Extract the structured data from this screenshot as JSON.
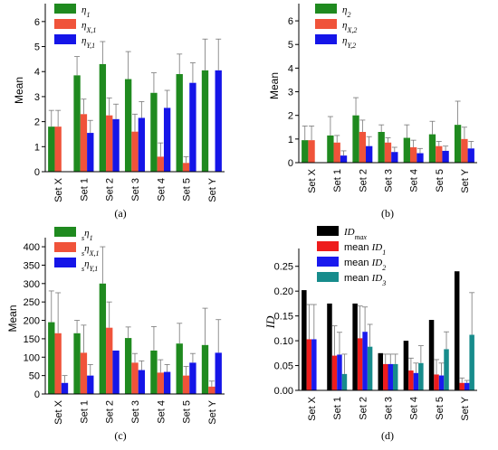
{
  "chart_data": [
    {
      "id": "a",
      "type": "bar",
      "panel_label": "(a)",
      "ylabel": "Mean",
      "ylim": [
        0,
        6.5
      ],
      "yticks": [
        "0",
        "1",
        "2",
        "3",
        "4",
        "5",
        "6"
      ],
      "categories": [
        "Set X",
        "Set 1",
        "Set 2",
        "Set 3",
        "Set 4",
        "Set 5",
        "Set Y"
      ],
      "legend": [
        {
          "base": "η",
          "sup": "",
          "subscript": "1"
        },
        {
          "base": "η",
          "sup": "",
          "subscript": "X,1"
        },
        {
          "base": "η",
          "sup": "",
          "subscript": "Y,1"
        }
      ],
      "series": [
        {
          "color": "#1f8a1f",
          "values": [
            1.8,
            3.85,
            4.3,
            3.7,
            3.15,
            3.9,
            4.05
          ],
          "errors": [
            0.65,
            0.75,
            0.9,
            1.1,
            0.8,
            0.8,
            1.25
          ]
        },
        {
          "color": "#f0533a",
          "values": [
            1.8,
            2.3,
            2.25,
            1.6,
            0.6,
            0.35,
            null
          ],
          "errors": [
            0.65,
            0.6,
            0.7,
            0.7,
            0.55,
            0.25,
            null
          ]
        },
        {
          "color": "#1515e8",
          "values": [
            null,
            1.55,
            2.1,
            2.15,
            2.55,
            3.55,
            4.05
          ],
          "errors": [
            null,
            0.5,
            0.6,
            0.65,
            0.7,
            0.8,
            1.25
          ]
        }
      ]
    },
    {
      "id": "b",
      "type": "bar",
      "panel_label": "(b)",
      "ylabel": "Mean",
      "ylim": [
        0,
        6.5
      ],
      "yticks": [
        "0",
        "1",
        "2",
        "3",
        "4",
        "5",
        "6"
      ],
      "categories": [
        "Set X",
        "Set 1",
        "Set 2",
        "Set 3",
        "Set 4",
        "Set 5",
        "Set Y"
      ],
      "legend": [
        {
          "base": "η",
          "sup": "",
          "subscript": "2"
        },
        {
          "base": "η",
          "sup": "",
          "subscript": "X,2"
        },
        {
          "base": "η",
          "sup": "",
          "subscript": "Y,2"
        }
      ],
      "series": [
        {
          "color": "#1f8a1f",
          "values": [
            0.95,
            1.15,
            2.0,
            1.3,
            1.05,
            1.2,
            1.6
          ],
          "errors": [
            0.6,
            0.8,
            0.75,
            0.3,
            0.55,
            0.55,
            1.0
          ]
        },
        {
          "color": "#f0533a",
          "values": [
            0.95,
            0.85,
            1.3,
            0.85,
            0.65,
            0.7,
            1.0
          ],
          "errors": [
            0.6,
            0.3,
            0.5,
            0.2,
            0.3,
            0.2,
            0.5
          ]
        },
        {
          "color": "#1515e8",
          "values": [
            null,
            0.3,
            0.7,
            0.45,
            0.4,
            0.5,
            0.6
          ],
          "errors": [
            null,
            0.2,
            0.4,
            0.2,
            0.2,
            0.2,
            0.3
          ]
        }
      ]
    },
    {
      "id": "c",
      "type": "bar",
      "panel_label": "(c)",
      "ylabel": "Mean",
      "ylim": [
        0,
        410
      ],
      "yticks": [
        "0",
        "50",
        "100",
        "150",
        "200",
        "250",
        "300",
        "350",
        "400"
      ],
      "categories": [
        "Set X",
        "Set 1",
        "Set 2",
        "Set 3",
        "Set 4",
        "Set 5",
        "Set Y"
      ],
      "legend": [
        {
          "base": "η",
          "sup": "s",
          "subscript": "1"
        },
        {
          "base": "η",
          "sup": "s",
          "subscript": "X,1"
        },
        {
          "base": "η",
          "sup": "s",
          "subscript": "Y,1"
        }
      ],
      "series": [
        {
          "color": "#1f8a1f",
          "values": [
            195,
            165,
            300,
            152,
            118,
            137,
            133
          ],
          "errors": [
            85,
            35,
            100,
            30,
            65,
            55,
            100
          ]
        },
        {
          "color": "#f0533a",
          "values": [
            165,
            112,
            180,
            85,
            58,
            50,
            20
          ],
          "errors": [
            110,
            75,
            70,
            25,
            35,
            25,
            15
          ]
        },
        {
          "color": "#1515e8",
          "values": [
            30,
            50,
            118,
            65,
            60,
            85,
            112
          ],
          "errors": [
            20,
            30,
            0,
            25,
            20,
            25,
            90
          ]
        }
      ]
    },
    {
      "id": "d",
      "type": "bar",
      "panel_label": "(d)",
      "ylabel": "ID",
      "ylim": [
        0,
        0.275
      ],
      "yticks": [
        "0.00",
        "0.05",
        "0.10",
        "0.15",
        "0.20",
        "0.25"
      ],
      "categories": [
        "Set X",
        "Set 1",
        "Set 2",
        "Set 3",
        "Set 4",
        "Set 5",
        "Set Y"
      ],
      "legend": [
        {
          "base": "ID",
          "prefix": "",
          "subscript": "max"
        },
        {
          "base": "ID",
          "prefix": "mean ",
          "subscript": "1"
        },
        {
          "base": "ID",
          "prefix": "mean ",
          "subscript": "2"
        },
        {
          "base": "ID",
          "prefix": "mean ",
          "subscript": "3"
        }
      ],
      "series": [
        {
          "color": "#000000",
          "values": [
            0.202,
            0.175,
            0.175,
            0.075,
            0.1,
            0.142,
            0.24
          ],
          "errors": [
            null,
            null,
            null,
            null,
            null,
            null,
            null
          ]
        },
        {
          "color": "#ee1c1c",
          "values": [
            0.103,
            0.07,
            0.105,
            0.053,
            0.04,
            0.032,
            0.015
          ],
          "errors": [
            0.07,
            0.06,
            0.065,
            0.02,
            0.025,
            0.03,
            0.01
          ]
        },
        {
          "color": "#1a1aee",
          "values": [
            0.103,
            0.072,
            0.118,
            0.053,
            0.035,
            0.03,
            0.015
          ],
          "errors": [
            0.07,
            0.045,
            0.05,
            0.02,
            0.02,
            0.025,
            0.005
          ]
        },
        {
          "color": "#178c8c",
          "values": [
            null,
            0.033,
            0.088,
            0.053,
            0.055,
            0.083,
            0.112
          ],
          "errors": [
            null,
            0.04,
            0.045,
            0.02,
            0.035,
            0.035,
            0.085
          ]
        }
      ]
    }
  ]
}
